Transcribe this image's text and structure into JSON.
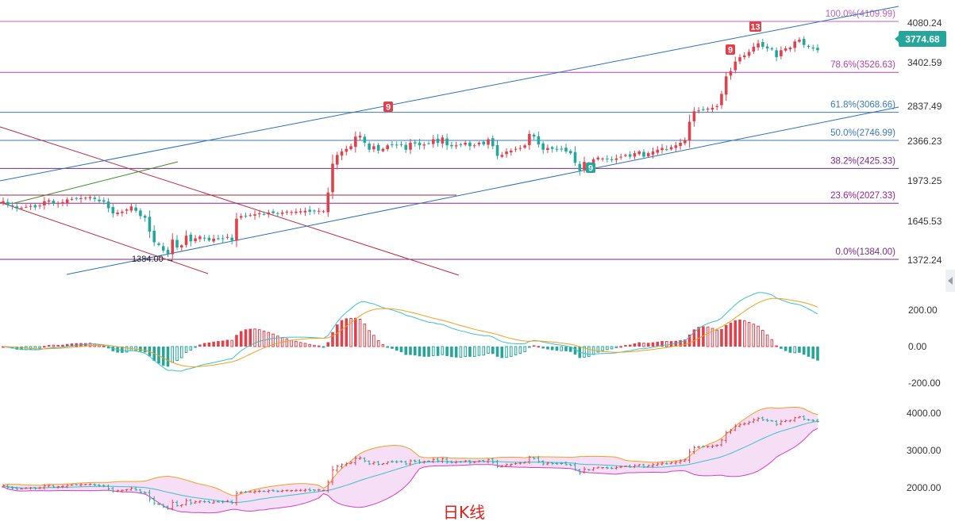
{
  "chart_data": {
    "type": "candlestick",
    "caption": "日K线",
    "price_panel": {
      "y_ticks": [
        "4080.24",
        "3402.59",
        "2837.49",
        "2366.23",
        "1973.25",
        "1645.53",
        "1372.24"
      ],
      "current_price": "3774.68",
      "low_annotation": "1384.00",
      "fib_levels": [
        {
          "label": "100.0%(4109.99)",
          "value": 4109.99,
          "color": "#c060c0"
        },
        {
          "label": "78.6%(3526.63)",
          "value": 3526.63,
          "color": "#b040b0"
        },
        {
          "label": "61.8%(3068.66)",
          "value": 3068.66,
          "color": "#3a7ab8"
        },
        {
          "label": "50.0%(2746.99)",
          "value": 2746.99,
          "color": "#3a7ab8"
        },
        {
          "label": "38.2%(2425.33)",
          "value": 2425.33,
          "color": "#7a2a8a"
        },
        {
          "label": "23.6%(2027.33)",
          "value": 2027.33,
          "color": "#9a2090"
        },
        {
          "label": "0.0%(1384.00)",
          "value": 1384.0,
          "color": "#7a2a8a"
        }
      ],
      "markers": [
        {
          "text": "9",
          "type": "sell"
        },
        {
          "text": "9",
          "type": "buy"
        },
        {
          "text": "9",
          "type": "sell"
        },
        {
          "text": "13",
          "type": "sell"
        }
      ],
      "up_color": "#e0404a",
      "down_color": "#26a69a"
    },
    "macd_panel": {
      "y_ticks": [
        "200.00",
        "0.00",
        "-200.00"
      ]
    },
    "boll_panel": {
      "y_ticks": [
        "4000.00",
        "3000.00",
        "2000.00"
      ]
    },
    "closes": [
      2050,
      2010,
      1990,
      1965,
      1975,
      1985,
      1995,
      1980,
      2000,
      2050,
      2060,
      2020,
      2030,
      2040,
      2070,
      2075,
      2080,
      2085,
      2090,
      2095,
      2075,
      2050,
      2045,
      1970,
      1910,
      1920,
      1930,
      1955,
      1990,
      1940,
      1880,
      1860,
      1700,
      1580,
      1550,
      1485,
      1450,
      1610,
      1520,
      1545,
      1655,
      1590,
      1625,
      1645,
      1625,
      1600,
      1620,
      1615,
      1620,
      1640,
      1600,
      1850,
      1880,
      1880,
      1890,
      1900,
      1910,
      1900,
      1920,
      1915,
      1905,
      1920,
      1930,
      1925,
      1930,
      1935,
      1940,
      1930,
      1935,
      1940,
      1935,
      2150,
      2480,
      2580,
      2620,
      2650,
      2680,
      2790,
      2800,
      2720,
      2640,
      2680,
      2630,
      2650,
      2690,
      2700,
      2695,
      2700,
      2640,
      2720,
      2710,
      2690,
      2700,
      2710,
      2760,
      2720,
      2780,
      2690,
      2680,
      2690,
      2700,
      2720,
      2680,
      2690,
      2720,
      2700,
      2760,
      2680,
      2570,
      2580,
      2620,
      2630,
      2650,
      2660,
      2690,
      2820,
      2790,
      2700,
      2640,
      2660,
      2650,
      2640,
      2650,
      2620,
      2600,
      2490,
      2400,
      2500,
      2480,
      2530,
      2550,
      2540,
      2530,
      2520,
      2540,
      2560,
      2580,
      2560,
      2600,
      2620,
      2560,
      2600,
      2620,
      2640,
      2660,
      2640,
      2670,
      2690,
      2720,
      2750,
      2960,
      3080,
      3090,
      3100,
      3110,
      3120,
      3140,
      3280,
      3480,
      3540,
      3650,
      3700,
      3720,
      3760,
      3820,
      3860,
      3820,
      3800,
      3790,
      3700,
      3780,
      3800,
      3810,
      3880,
      3900,
      3840,
      3820,
      3800,
      3780
    ]
  }
}
